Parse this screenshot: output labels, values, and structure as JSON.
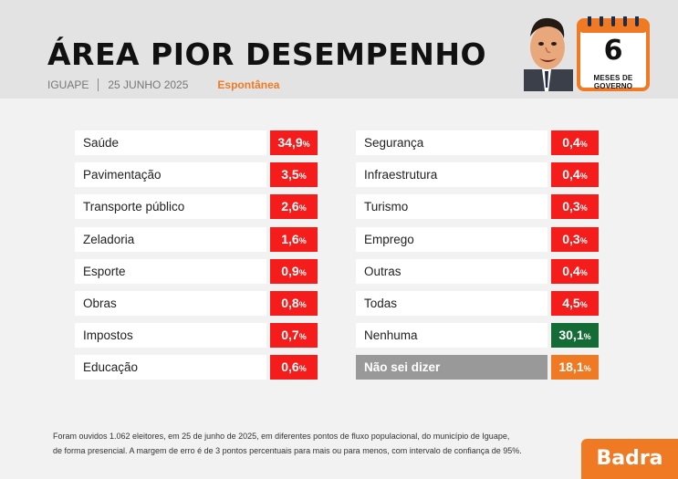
{
  "header": {
    "title": "ÁREA PIOR DESEMPENHO",
    "city": "IGUAPE",
    "date": "25 JUNHO 2025",
    "kind": "Espontânea",
    "calendar_number": "6",
    "calendar_label": "MESES DE GOVERNO"
  },
  "chart_data": {
    "type": "table",
    "unit": "%",
    "categories": [
      "Saúde",
      "Pavimentação",
      "Transporte público",
      "Zeladoria",
      "Esporte",
      "Obras",
      "Impostos",
      "Educação",
      "Segurança",
      "Infraestrutura",
      "Turismo",
      "Emprego",
      "Outras",
      "Todas",
      "Nenhuma",
      "Não sei dizer"
    ],
    "values": [
      34.9,
      3.5,
      2.6,
      1.6,
      0.9,
      0.8,
      0.7,
      0.6,
      0.4,
      0.4,
      0.3,
      0.3,
      0.4,
      4.5,
      30.1,
      18.1
    ],
    "columns": [
      [
        {
          "label": "Saúde",
          "value_text": "34,9",
          "color": "#f51c1c"
        },
        {
          "label": "Pavimentação",
          "value_text": "3,5",
          "color": "#f51c1c"
        },
        {
          "label": "Transporte público",
          "value_text": "2,6",
          "color": "#f51c1c"
        },
        {
          "label": "Zeladoria",
          "value_text": "1,6",
          "color": "#f51c1c"
        },
        {
          "label": "Esporte",
          "value_text": "0,9",
          "color": "#f51c1c"
        },
        {
          "label": "Obras",
          "value_text": "0,8",
          "color": "#f51c1c"
        },
        {
          "label": "Impostos",
          "value_text": "0,7",
          "color": "#f51c1c"
        },
        {
          "label": "Educação",
          "value_text": "0,6",
          "color": "#f51c1c"
        }
      ],
      [
        {
          "label": "Segurança",
          "value_text": "0,4",
          "color": "#f51c1c"
        },
        {
          "label": "Infraestrutura",
          "value_text": "0,4",
          "color": "#f51c1c"
        },
        {
          "label": "Turismo",
          "value_text": "0,3",
          "color": "#f51c1c"
        },
        {
          "label": "Emprego",
          "value_text": "0,3",
          "color": "#f51c1c"
        },
        {
          "label": "Outras",
          "value_text": "0,4",
          "color": "#f51c1c"
        },
        {
          "label": "Todas",
          "value_text": "4,5",
          "color": "#f51c1c"
        },
        {
          "label": "Nenhuma",
          "value_text": "30,1",
          "color": "#146b35"
        },
        {
          "label": "Não sei dizer",
          "value_text": "18,1",
          "color": "#f07a23",
          "label_bg": "#999999"
        }
      ]
    ]
  },
  "footnote": {
    "line1": "Foram ouvidos 1.062 eleitores, em 25 de junho de 2025, em diferentes pontos de fluxo populacional, do município de Iguape,",
    "line2": "de forma presencial. A margem de erro é de 3 pontos percentuais para mais ou para menos, com intervalo de confiança de 95%."
  },
  "brand": "Badra",
  "icons": {
    "portrait": "mayor-caricature-icon",
    "calendar": "calendar-icon"
  }
}
